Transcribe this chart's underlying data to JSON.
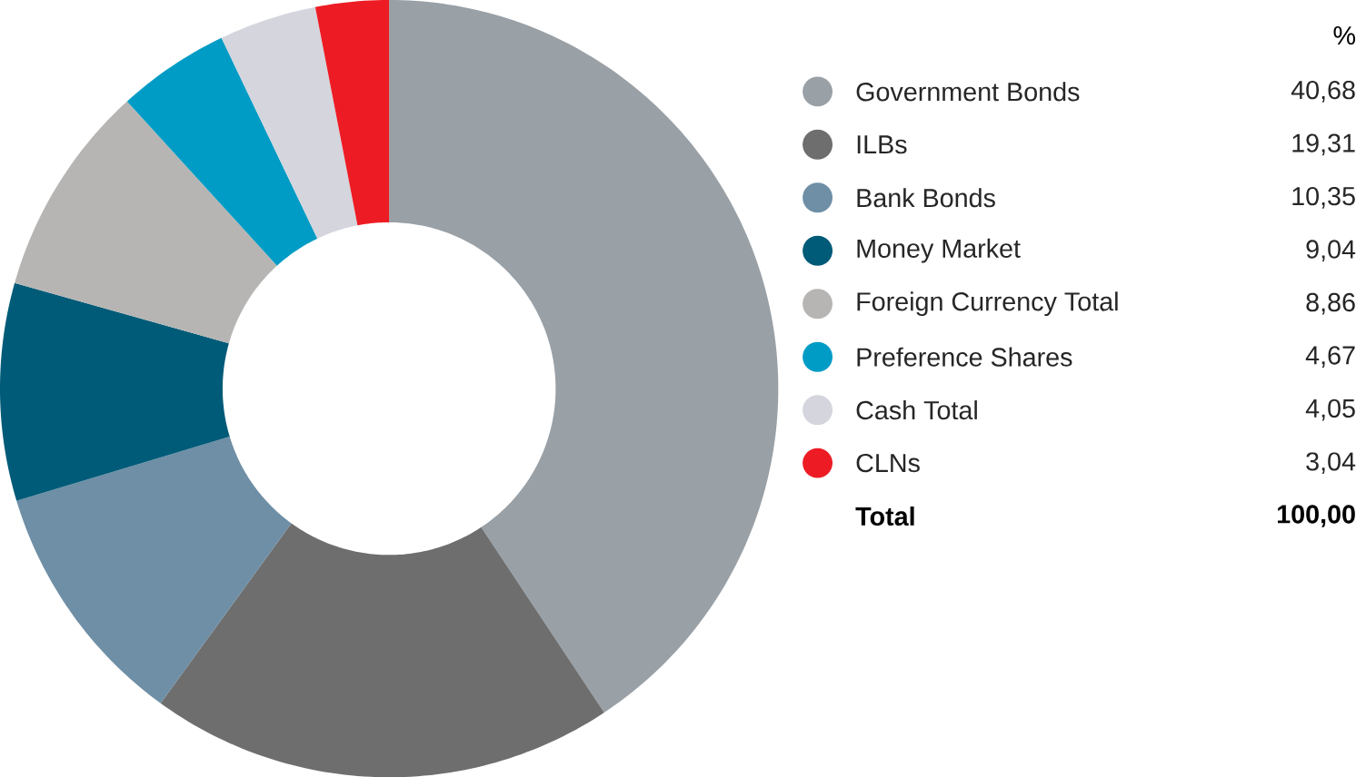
{
  "chart_data": {
    "type": "donut",
    "legend": "right",
    "legend_title": "%",
    "categories": [
      "Government Bonds",
      "ILBs",
      "Bank Bonds",
      "Money Market",
      "Foreign Currency Total",
      "Preference Shares",
      "Cash Total",
      "CLNs"
    ],
    "values": [
      40.68,
      19.31,
      10.35,
      9.04,
      8.86,
      4.67,
      4.05,
      3.04
    ],
    "value_labels": [
      "40,68",
      "19,31",
      "10,35",
      "9,04",
      "8,86",
      "4,67",
      "4,05",
      "3,04"
    ],
    "colors": [
      "#99a0a6",
      "#6e6e6e",
      "#6e8fa6",
      "#005b78",
      "#b6b5b3",
      "#009cc5",
      "#d4d5dd",
      "#ed1c24"
    ],
    "annotations": [
      "Total",
      "100,00"
    ]
  }
}
